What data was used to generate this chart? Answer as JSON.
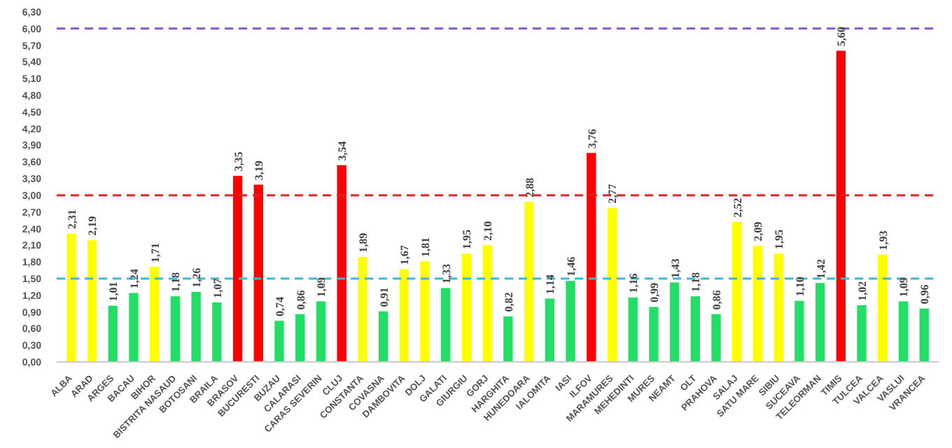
{
  "chart_data": {
    "type": "bar",
    "categories": [
      "ALBA",
      "ARAD",
      "ARGES",
      "BACAU",
      "BIHOR",
      "BISTRITA NASAUD",
      "BOTOSANI",
      "BRAILA",
      "BRASOV",
      "BUCURESTI",
      "BUZAU",
      "CALARASI",
      "CARAS SEVERIN",
      "CLUJ",
      "CONSTANTA",
      "COVASNA",
      "DAMBOVITA",
      "DOLJ",
      "GALATI",
      "GIURGIU",
      "GORJ",
      "HARGHITA",
      "HUNEDOARA",
      "IALOMITA",
      "IASI",
      "ILFOV",
      "MARAMURES",
      "MEHEDINTI",
      "MURES",
      "NEAMT",
      "OLT",
      "PRAHOVA",
      "SALAJ",
      "SATU MARE",
      "SIBIU",
      "SUCEAVA",
      "TELEORMAN",
      "TIMIS",
      "TULCEA",
      "VALCEA",
      "VASLUI",
      "VRANCEA"
    ],
    "values": [
      2.31,
      2.19,
      1.01,
      1.24,
      1.71,
      1.18,
      1.26,
      1.07,
      3.35,
      3.19,
      0.74,
      0.86,
      1.09,
      3.54,
      1.89,
      0.91,
      1.67,
      1.81,
      1.33,
      1.95,
      2.1,
      0.82,
      2.88,
      1.14,
      1.46,
      3.76,
      2.77,
      1.16,
      0.99,
      1.43,
      1.18,
      0.86,
      2.52,
      2.09,
      1.95,
      1.1,
      1.42,
      5.6,
      1.02,
      1.93,
      1.09,
      0.96
    ],
    "value_labels": [
      "2,31",
      "2,19",
      "1,01",
      "1,24",
      "1,71",
      "1,18",
      "1,26",
      "1,07",
      "3,35",
      "3,19",
      "0,74",
      "0,86",
      "1,09",
      "3,54",
      "1,89",
      "0,91",
      "1,67",
      "1,81",
      "1,33",
      "1,95",
      "2,10",
      "0,82",
      "2,88",
      "1,14",
      "1,46",
      "3,76",
      "2,77",
      "1,16",
      "0,99",
      "1,43",
      "1,18",
      "0,86",
      "2,52",
      "2,09",
      "1,95",
      "1,10",
      "1,42",
      "5,60",
      "1,02",
      "1,93",
      "1,09",
      "0,96"
    ],
    "colors": [
      "#ffff00",
      "#ffff00",
      "#22dd66",
      "#22dd66",
      "#ffff00",
      "#22dd66",
      "#22dd66",
      "#22dd66",
      "#ff0000",
      "#ff0000",
      "#22dd66",
      "#22dd66",
      "#22dd66",
      "#ff0000",
      "#ffff00",
      "#22dd66",
      "#ffff00",
      "#ffff00",
      "#22dd66",
      "#ffff00",
      "#ffff00",
      "#22dd66",
      "#ffff00",
      "#22dd66",
      "#22dd66",
      "#ff0000",
      "#ffff00",
      "#22dd66",
      "#22dd66",
      "#22dd66",
      "#22dd66",
      "#22dd66",
      "#ffff00",
      "#ffff00",
      "#ffff00",
      "#22dd66",
      "#22dd66",
      "#ff0000",
      "#22dd66",
      "#ffff00",
      "#22dd66",
      "#22dd66"
    ],
    "ylim": [
      0,
      6.3
    ],
    "yticks": [
      {
        "value": 0,
        "label": "0,00"
      },
      {
        "value": 0.3,
        "label": "0,30"
      },
      {
        "value": 0.6,
        "label": "0,60"
      },
      {
        "value": 0.9,
        "label": "0,90"
      },
      {
        "value": 1.2,
        "label": "1,20"
      },
      {
        "value": 1.5,
        "label": "1,50"
      },
      {
        "value": 1.8,
        "label": "1,80"
      },
      {
        "value": 2.1,
        "label": "2,10"
      },
      {
        "value": 2.4,
        "label": "2,40"
      },
      {
        "value": 2.7,
        "label": "2,70"
      },
      {
        "value": 3.0,
        "label": "3,00"
      },
      {
        "value": 3.3,
        "label": "3,30"
      },
      {
        "value": 3.6,
        "label": "3,60"
      },
      {
        "value": 3.9,
        "label": "3,90"
      },
      {
        "value": 4.2,
        "label": "4,20"
      },
      {
        "value": 4.5,
        "label": "4,50"
      },
      {
        "value": 4.8,
        "label": "4,80"
      },
      {
        "value": 5.1,
        "label": "5,10"
      },
      {
        "value": 5.4,
        "label": "5,40"
      },
      {
        "value": 5.7,
        "label": "5,70"
      },
      {
        "value": 6.0,
        "label": "6,00"
      },
      {
        "value": 6.3,
        "label": "6,30"
      }
    ],
    "ref_lines": [
      {
        "axis": "y",
        "value": 1.5,
        "color": "#33bbdd",
        "line_style": "dashed"
      },
      {
        "axis": "y",
        "value": 3.0,
        "color": "#dd2222",
        "line_style": "dashed"
      },
      {
        "axis": "y",
        "value": 6.0,
        "color": "#8855cc",
        "line_style": "dashed"
      }
    ],
    "grid": false
  }
}
